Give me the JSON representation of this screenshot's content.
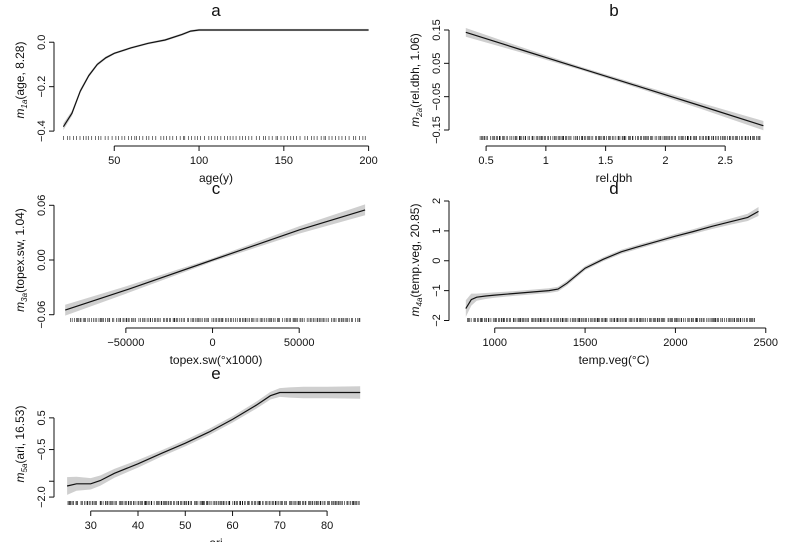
{
  "chart_data": [
    {
      "type": "line",
      "panel_letter": "a",
      "xlabel": "age(y)",
      "ylabel": {
        "m": "m",
        "sub": "1a",
        "rest": "(age, 8.28)"
      },
      "xlim": [
        18,
        202
      ],
      "ylim": [
        -0.44,
        0.1
      ],
      "x_ticks": [
        50,
        100,
        150,
        200
      ],
      "y_ticks": [
        -0.4,
        -0.2,
        0.0
      ],
      "y_tick_labels": [
        "−0.4",
        "−0.2",
        "0.0"
      ],
      "series": [
        {
          "x": [
            20,
            25,
            30,
            35,
            40,
            45,
            50,
            60,
            70,
            80,
            90,
            95,
            100,
            120,
            150,
            200
          ],
          "y": [
            -0.38,
            -0.32,
            -0.22,
            -0.15,
            -0.1,
            -0.07,
            -0.05,
            -0.025,
            -0.005,
            0.01,
            0.035,
            0.05,
            0.055,
            0.055,
            0.055,
            0.055
          ],
          "half_band": [
            0.015,
            0.012,
            0.01,
            0.008,
            0.007,
            0.006,
            0.005,
            0.005,
            0.005,
            0.005,
            0.005,
            0.005,
            0.005,
            0.005,
            0.005,
            0.005
          ]
        }
      ],
      "rug": {
        "from": 20,
        "to": 198,
        "count": 95
      }
    },
    {
      "type": "line",
      "panel_letter": "b",
      "xlabel": "rel.dbh",
      "ylabel": {
        "m": "m",
        "sub": "2a",
        "rest": "(rel.dbh, 1.06)"
      },
      "xlim": [
        0.24,
        2.9
      ],
      "ylim": [
        -0.18,
        0.18
      ],
      "x_ticks": [
        0.5,
        1.0,
        1.5,
        2.0,
        2.5
      ],
      "y_ticks": [
        -0.15,
        -0.05,
        0.05,
        0.15
      ],
      "y_tick_labels": [
        "−0.15",
        "−0.05",
        "0.05",
        "0.15"
      ],
      "series": [
        {
          "x": [
            0.33,
            0.8,
            1.3,
            1.8,
            2.3,
            2.82
          ],
          "y": [
            0.143,
            0.09,
            0.034,
            -0.022,
            -0.078,
            -0.137
          ],
          "half_band": [
            0.013,
            0.008,
            0.005,
            0.006,
            0.009,
            0.014
          ]
        }
      ],
      "rug": {
        "from": 0.45,
        "to": 2.8,
        "count": 200
      }
    },
    {
      "type": "line",
      "panel_letter": "c",
      "xlabel": "topex.sw(°x1000)",
      "ylabel": {
        "m": "m",
        "sub": "3a",
        "rest": "(topex.sw, 1.04)"
      },
      "xlim": [
        -88000,
        92000
      ],
      "ylim": [
        -0.068,
        0.068
      ],
      "x_ticks": [
        -50000,
        0,
        50000
      ],
      "x_tick_labels": [
        "−50000",
        "0",
        "50000"
      ],
      "y_ticks": [
        -0.06,
        0.0,
        0.06
      ],
      "y_tick_labels": [
        "−0.06",
        "0.00",
        "0.06"
      ],
      "series": [
        {
          "x": [
            -85000,
            -50000,
            0,
            50000,
            88000
          ],
          "y": [
            -0.055,
            -0.033,
            0.0,
            0.033,
            0.055
          ],
          "half_band": [
            0.006,
            0.004,
            0.002,
            0.004,
            0.006
          ]
        }
      ],
      "rug": {
        "from": -82000,
        "to": 85000,
        "count": 180
      }
    },
    {
      "type": "line",
      "panel_letter": "d",
      "xlabel": "temp.veg(°C)",
      "ylabel": {
        "m": "m",
        "sub": "4a",
        "rest": "(temp.veg, 20.85)"
      },
      "xlim": [
        780,
        2540
      ],
      "ylim": [
        -2.05,
        2.1
      ],
      "x_ticks": [
        1000,
        1500,
        2000,
        2500
      ],
      "y_ticks": [
        -2,
        -1,
        0,
        1,
        2
      ],
      "y_tick_labels": [
        "−2",
        "−1",
        "0",
        "1",
        "2"
      ],
      "series": [
        {
          "x": [
            840,
            870,
            900,
            950,
            1000,
            1100,
            1200,
            1300,
            1350,
            1400,
            1500,
            1600,
            1700,
            1800,
            1900,
            2000,
            2100,
            2200,
            2300,
            2400,
            2460
          ],
          "y": [
            -1.6,
            -1.3,
            -1.22,
            -1.18,
            -1.15,
            -1.1,
            -1.05,
            -1.0,
            -0.95,
            -0.75,
            -0.25,
            0.05,
            0.3,
            0.48,
            0.65,
            0.82,
            0.98,
            1.15,
            1.3,
            1.45,
            1.65
          ],
          "half_band": [
            0.28,
            0.2,
            0.12,
            0.1,
            0.09,
            0.08,
            0.08,
            0.08,
            0.08,
            0.08,
            0.07,
            0.07,
            0.07,
            0.07,
            0.07,
            0.08,
            0.08,
            0.09,
            0.1,
            0.12,
            0.15
          ]
        }
      ],
      "rug": {
        "from": 850,
        "to": 2440,
        "count": 220
      }
    },
    {
      "type": "line",
      "panel_letter": "e",
      "xlabel": "ari",
      "ylabel": {
        "m": "m",
        "sub": "5a",
        "rest": "(ari, 16.53)"
      },
      "xlim": [
        23.5,
        89.5
      ],
      "ylim": [
        -2.25,
        1.6
      ],
      "x_ticks": [
        30,
        40,
        50,
        60,
        70,
        80
      ],
      "y_ticks": [
        -2.0,
        -1.5,
        -0.5,
        0.5
      ],
      "y_tick_labels": [
        "−2.0",
        "",
        "−0.5",
        "0.5"
      ],
      "series": [
        {
          "x": [
            25,
            27,
            30,
            32,
            35,
            40,
            45,
            50,
            55,
            60,
            65,
            68,
            70,
            72,
            75,
            80,
            87
          ],
          "y": [
            -1.65,
            -1.58,
            -1.58,
            -1.48,
            -1.25,
            -0.95,
            -0.62,
            -0.3,
            0.05,
            0.45,
            0.9,
            1.2,
            1.3,
            1.3,
            1.3,
            1.3,
            1.3
          ],
          "half_band": [
            0.28,
            0.22,
            0.18,
            0.16,
            0.14,
            0.12,
            0.1,
            0.1,
            0.1,
            0.1,
            0.11,
            0.12,
            0.14,
            0.16,
            0.18,
            0.18,
            0.2
          ]
        }
      ],
      "rug": {
        "from": 25,
        "to": 87,
        "count": 230
      }
    }
  ]
}
